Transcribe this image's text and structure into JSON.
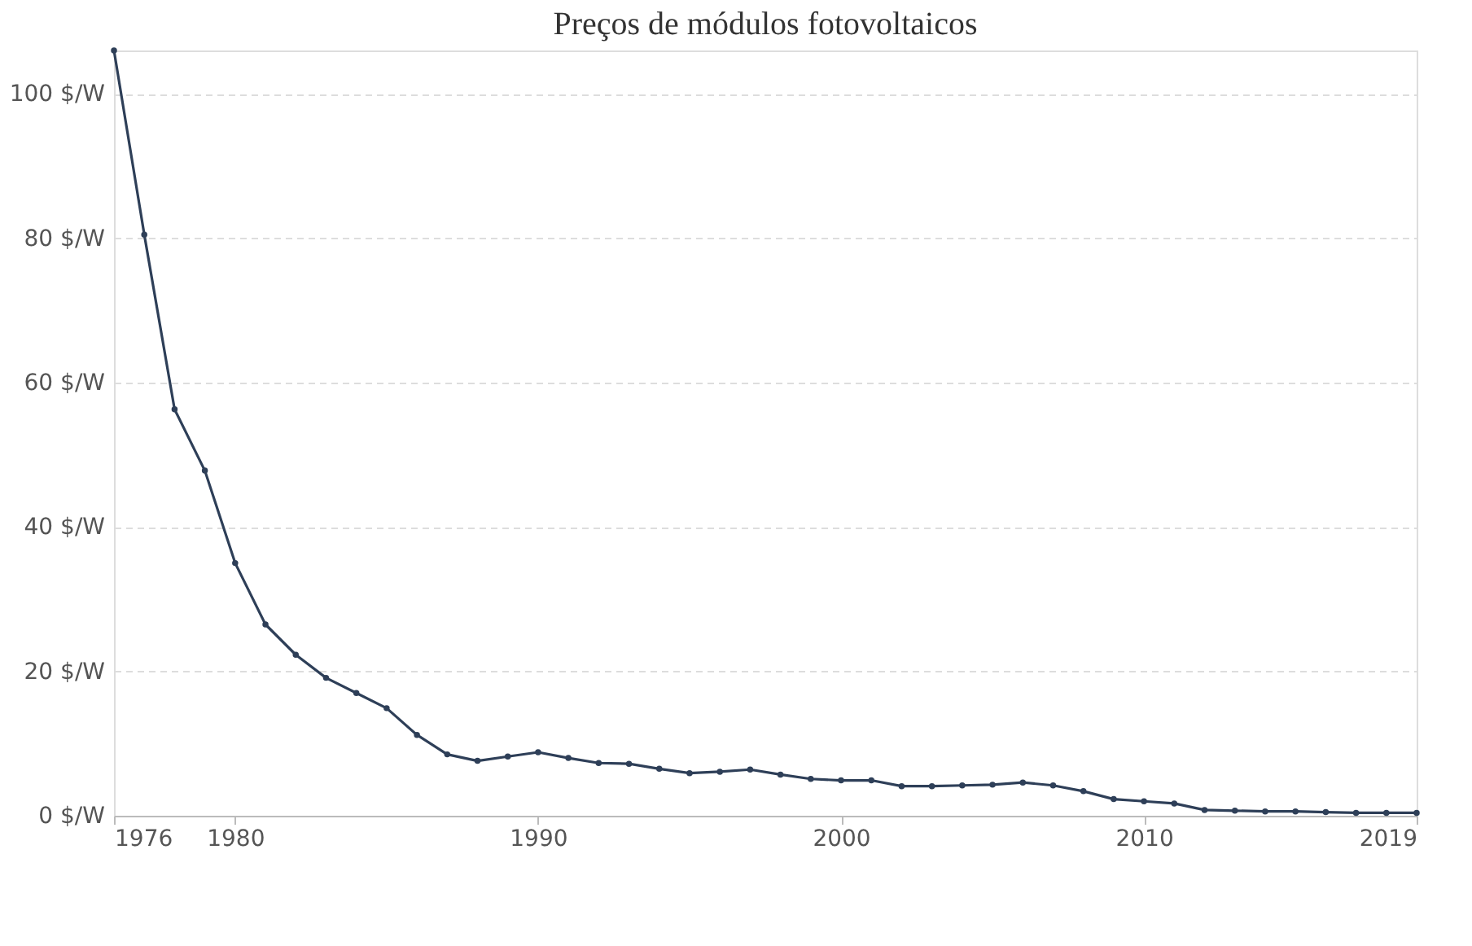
{
  "chart_data": {
    "type": "line",
    "title": "Preços de módulos fotovoltaicos",
    "x": [
      1976,
      1977,
      1978,
      1979,
      1980,
      1981,
      1982,
      1983,
      1984,
      1985,
      1986,
      1987,
      1988,
      1989,
      1990,
      1991,
      1992,
      1993,
      1994,
      1995,
      1996,
      1997,
      1998,
      1999,
      2000,
      2001,
      2002,
      2003,
      2004,
      2005,
      2006,
      2007,
      2008,
      2009,
      2010,
      2011,
      2012,
      2013,
      2014,
      2015,
      2016,
      2017,
      2018,
      2019
    ],
    "series": [
      {
        "color": "#2e3f58",
        "values": [
          106,
          80.5,
          56.3,
          47.8,
          35.0,
          26.5,
          22.3,
          19.1,
          17.0,
          14.9,
          11.2,
          8.5,
          7.6,
          8.2,
          8.8,
          8.0,
          7.3,
          7.2,
          6.5,
          5.9,
          6.1,
          6.4,
          5.7,
          5.1,
          4.9,
          4.9,
          4.1,
          4.1,
          4.2,
          4.3,
          4.6,
          4.2,
          3.4,
          2.3,
          2.0,
          1.7,
          0.8,
          0.7,
          0.6,
          0.6,
          0.5,
          0.4,
          0.4,
          0.4
        ]
      }
    ],
    "xlim": [
      1976,
      2019
    ],
    "xticks": [
      1976,
      1980,
      1990,
      2000,
      2010,
      2019
    ],
    "ylim": [
      0,
      106
    ],
    "yticks": [
      {
        "value": 0,
        "label": "0 $/W"
      },
      {
        "value": 20,
        "label": "20 $/W"
      },
      {
        "value": 40,
        "label": "40 $/W"
      },
      {
        "value": 60,
        "label": "60 $/W"
      },
      {
        "value": 80,
        "label": "80 $/W"
      },
      {
        "value": 100,
        "label": "100 $/W"
      }
    ],
    "grid": "y",
    "marker": "circle",
    "line_style": "solid",
    "legend": false
  }
}
